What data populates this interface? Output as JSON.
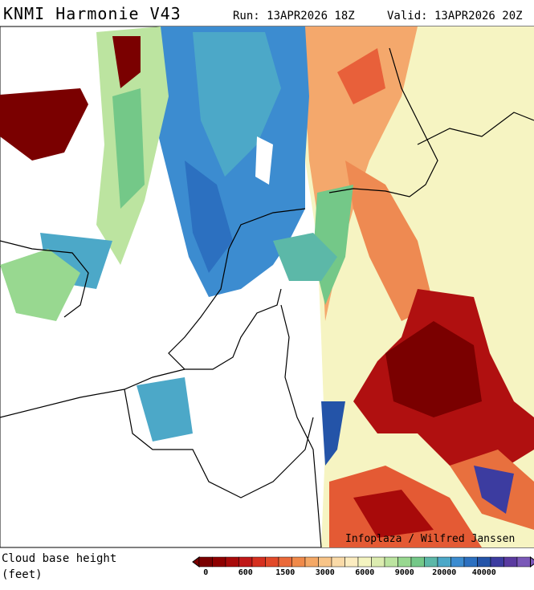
{
  "header": {
    "title": "KNMI Harmonie V43",
    "run": "Run: 13APR2026 18Z",
    "valid": "Valid: 13APR2026 20Z"
  },
  "credit": "Infoplaza / Wilfred Janssen",
  "legend": {
    "title_line1": "Cloud base height",
    "title_line2": "(feet)",
    "ticks": [
      0,
      600,
      1500,
      3000,
      6000,
      9000,
      20000,
      40000
    ],
    "colors": [
      "#7a0000",
      "#8e0000",
      "#a80a0a",
      "#c01818",
      "#d63020",
      "#e24a2a",
      "#ea6a3a",
      "#f08a4a",
      "#f4a866",
      "#f8c488",
      "#fadaa8",
      "#fcecc0",
      "#f4f4c0",
      "#dcecb0",
      "#bce4a0",
      "#98d890",
      "#74c888",
      "#5cb8a8",
      "#4ca8c8",
      "#3c8cd0",
      "#2c70c0",
      "#2454a8",
      "#3c3ca0",
      "#5a3aa0",
      "#7a58b8"
    ]
  }
}
